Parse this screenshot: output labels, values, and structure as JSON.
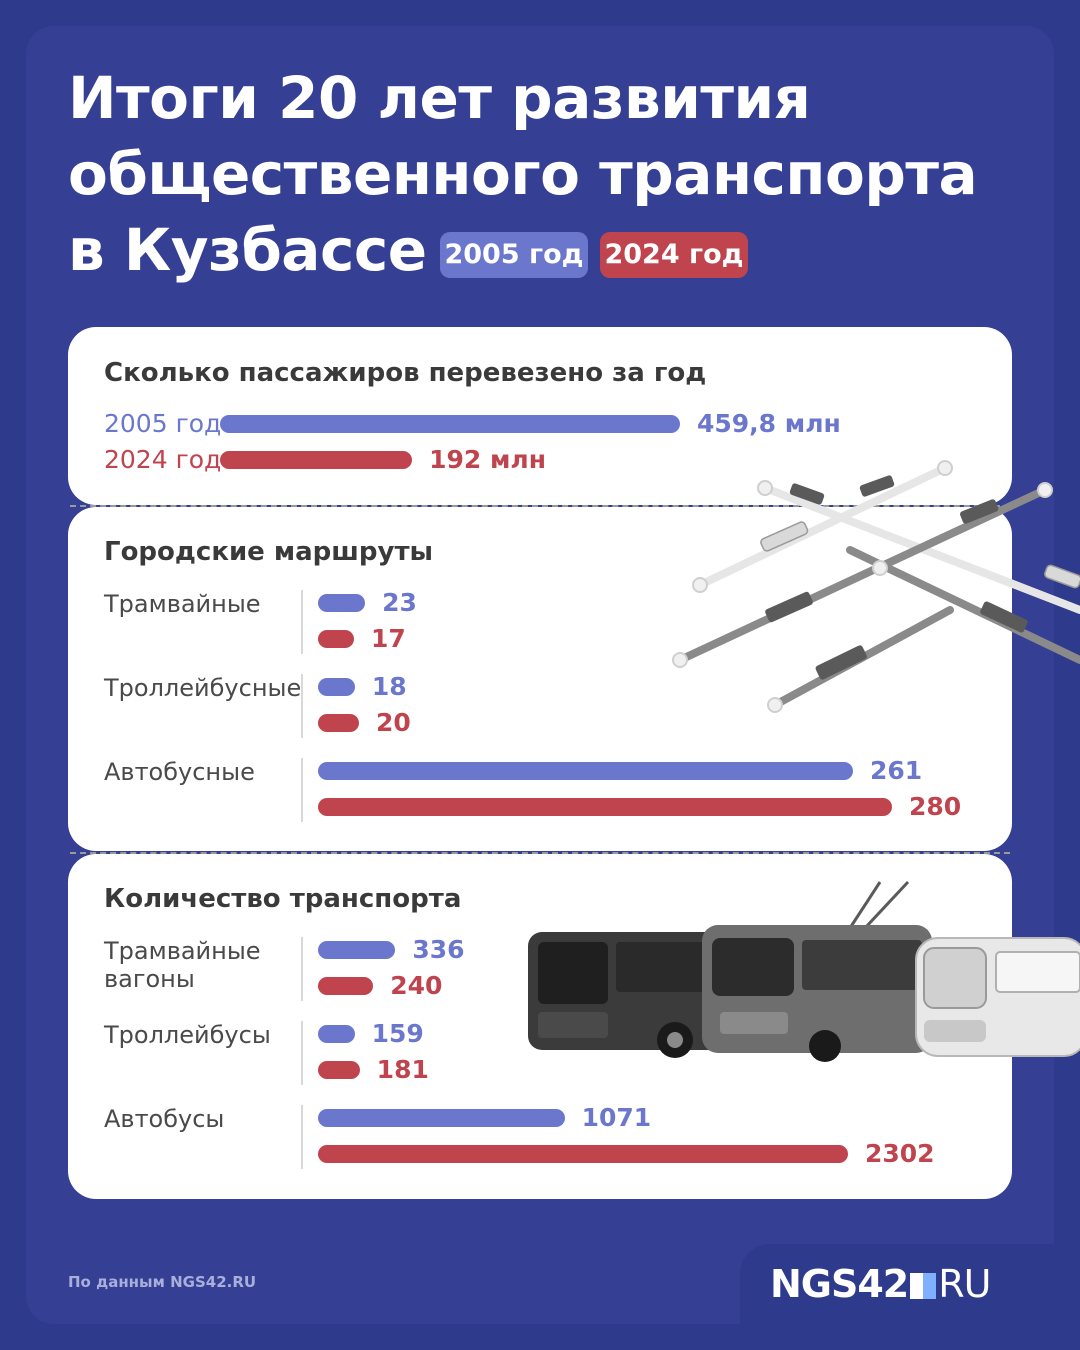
{
  "title_lines": [
    "Итоги 20 лет развития",
    "общественного транспорта",
    "в Кузбассе"
  ],
  "legend": {
    "y2005": "2005 год",
    "y2024": "2024 год"
  },
  "colors": {
    "y2005": "#6b77cc",
    "y2024": "#c0444e",
    "background": "#353f93"
  },
  "chart_data": [
    {
      "type": "bar",
      "title": "Сколько пассажиров перевезено за год",
      "categories": [
        "2005 год",
        "2024 год"
      ],
      "values": [
        459.8,
        192
      ],
      "value_labels": [
        "459,8 млн",
        "192 млн"
      ],
      "unit": "млн"
    },
    {
      "type": "bar",
      "title": "Городские маршруты",
      "categories": [
        "Трамвайные",
        "Троллейбусные",
        "Автобусные"
      ],
      "series": [
        {
          "name": "2005 год",
          "values": [
            23,
            18,
            261
          ]
        },
        {
          "name": "2024 год",
          "values": [
            17,
            20,
            280
          ]
        }
      ],
      "value_labels": [
        [
          "23",
          "17"
        ],
        [
          "18",
          "20"
        ],
        [
          "261",
          "280"
        ]
      ]
    },
    {
      "type": "bar",
      "title": "Количество транспорта",
      "categories": [
        "Трамвайные вагоны",
        "Троллейбусы",
        "Автобусы"
      ],
      "category_lines": [
        [
          "Трамвайные",
          "вагоны"
        ],
        [
          "Троллейбусы"
        ],
        [
          "Автобусы"
        ]
      ],
      "series": [
        {
          "name": "2005 год",
          "values": [
            336,
            159,
            1071
          ]
        },
        {
          "name": "2024 год",
          "values": [
            240,
            181,
            2302
          ]
        }
      ],
      "value_labels": [
        [
          "336",
          "240"
        ],
        [
          "159",
          "181"
        ],
        [
          "1071",
          "2302"
        ]
      ]
    }
  ],
  "footer": {
    "source": "По данным NGS42.RU",
    "logo_main": "NGS42",
    "logo_suffix": "RU"
  },
  "icons": [
    "route-map-illustration",
    "bus-icon",
    "trolleybus-icon",
    "tram-icon"
  ]
}
